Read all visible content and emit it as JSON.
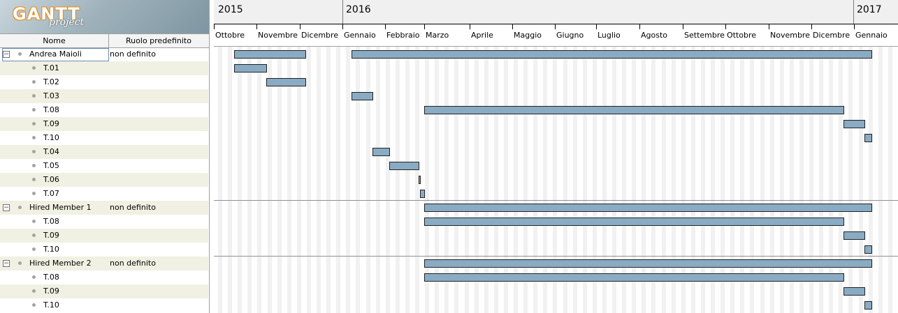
{
  "app": {
    "logo_main": "GANTT",
    "logo_sub": "project",
    "brand_color": "#e88b14"
  },
  "columns": {
    "name": "Nome",
    "role": "Ruolo predefinito"
  },
  "rows": [
    {
      "label": "Andrea Maioli",
      "role": "non definito",
      "type": "resource",
      "expander": "−"
    },
    {
      "label": "T.01",
      "type": "task"
    },
    {
      "label": "T.02",
      "type": "task"
    },
    {
      "label": "T.03",
      "type": "task"
    },
    {
      "label": "T.08",
      "type": "task"
    },
    {
      "label": "T.09",
      "type": "task"
    },
    {
      "label": "T.10",
      "type": "task"
    },
    {
      "label": "T.04",
      "type": "task"
    },
    {
      "label": "T.05",
      "type": "task"
    },
    {
      "label": "T.06",
      "type": "task"
    },
    {
      "label": "T.07",
      "type": "task"
    },
    {
      "label": "Hired Member 1",
      "role": "non definito",
      "type": "resource",
      "expander": "−"
    },
    {
      "label": "T.08",
      "type": "task"
    },
    {
      "label": "T.09",
      "type": "task"
    },
    {
      "label": "T.10",
      "type": "task"
    },
    {
      "label": "Hired Member 2",
      "role": "non definito",
      "type": "resource",
      "expander": "−"
    },
    {
      "label": "T.08",
      "type": "task"
    },
    {
      "label": "T.09",
      "type": "task"
    },
    {
      "label": "T.10",
      "type": "task"
    }
  ],
  "timeline": {
    "years": [
      "2015",
      "2016",
      "2017"
    ],
    "months": [
      "Ottobre",
      "Novembre",
      "Dicembre",
      "Gennaio",
      "Febbraio",
      "Marzo",
      "Aprile",
      "Maggio",
      "Giugno",
      "Luglio",
      "Agosto",
      "Settembre",
      "Ottobre",
      "Novembre",
      "Dicembre",
      "Gennaio"
    ]
  },
  "colors": {
    "bar": "#8aabc4",
    "alt_row": "#f0f1e3",
    "weekend": "#f1f1f1"
  }
}
